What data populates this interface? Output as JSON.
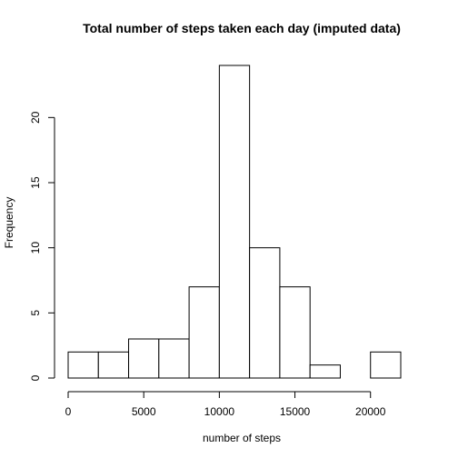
{
  "chart_data": {
    "type": "bar",
    "variant": "histogram",
    "title": "Total number of steps taken each day (imputed data)",
    "xlabel": "number of steps",
    "ylabel": "Frequency",
    "bin_edges": [
      0,
      2000,
      4000,
      6000,
      8000,
      10000,
      12000,
      14000,
      16000,
      18000,
      20000,
      22000
    ],
    "values": [
      2,
      2,
      3,
      3,
      7,
      24,
      10,
      7,
      1,
      0,
      2
    ],
    "xlim": [
      0,
      22000
    ],
    "ylim": [
      0,
      24
    ],
    "x_ticks": [
      0,
      5000,
      10000,
      15000,
      20000
    ],
    "y_ticks": [
      0,
      5,
      10,
      15,
      20
    ],
    "grid": false,
    "legend": "none",
    "bar_fill": "#ffffff",
    "bar_stroke": "#000000"
  }
}
